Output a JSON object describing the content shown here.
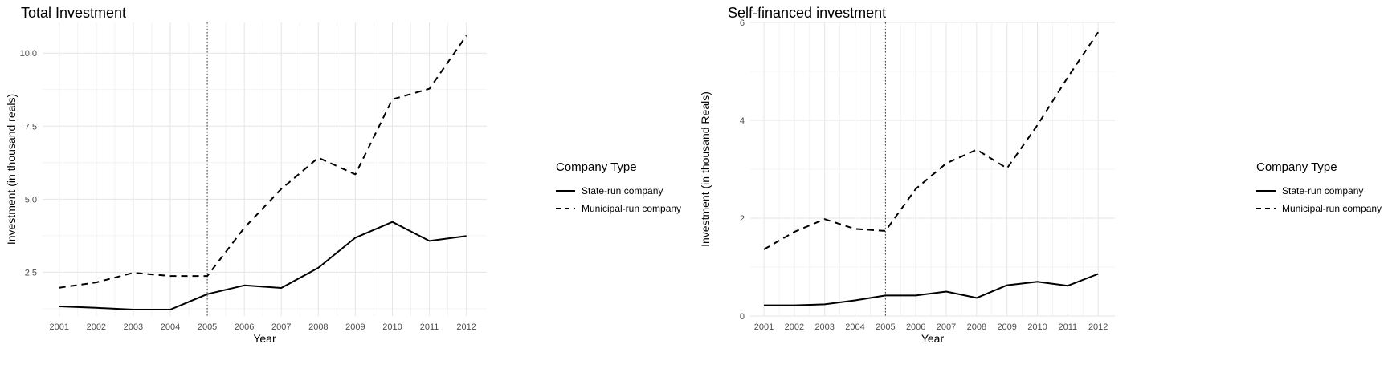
{
  "chart_data": [
    {
      "type": "line",
      "title": "Total Investment",
      "xlabel": "Year",
      "ylabel": "Investment (in thousand reals)",
      "x": [
        2001,
        2002,
        2003,
        2004,
        2005,
        2006,
        2007,
        2008,
        2009,
        2010,
        2011,
        2012
      ],
      "xlim": [
        2000.55,
        2012.55
      ],
      "ylim": [
        1.0,
        11.05
      ],
      "yticks": [
        2.5,
        5.0,
        7.5,
        10.0
      ],
      "ytick_labels": [
        "2.5",
        "5.0",
        "7.5",
        "10.0"
      ],
      "vline": 2005,
      "grid": true,
      "legend": {
        "title": "Company Type",
        "position": "right",
        "entries": [
          "State-run company",
          "Municipal-run company"
        ]
      },
      "series": [
        {
          "name": "State-run company",
          "linestyle": "solid",
          "values": [
            1.33,
            1.28,
            1.22,
            1.22,
            1.75,
            2.05,
            1.96,
            2.65,
            3.68,
            4.22,
            3.57,
            3.74
          ]
        },
        {
          "name": "Municipal-run company",
          "linestyle": "dashed",
          "values": [
            1.97,
            2.15,
            2.48,
            2.37,
            2.37,
            4.02,
            5.35,
            6.42,
            5.85,
            8.42,
            8.78,
            10.6
          ]
        }
      ]
    },
    {
      "type": "line",
      "title": "Self-financed investment",
      "xlabel": "Year",
      "ylabel": "Investment (in thousand Reals)",
      "x": [
        2001,
        2002,
        2003,
        2004,
        2005,
        2006,
        2007,
        2008,
        2009,
        2010,
        2011,
        2012
      ],
      "xlim": [
        2000.55,
        2012.55
      ],
      "ylim": [
        0,
        6.0
      ],
      "yticks": [
        0,
        2,
        4,
        6
      ],
      "ytick_labels": [
        "0",
        "2",
        "4",
        "6"
      ],
      "vline": 2005,
      "grid": true,
      "legend": {
        "title": "Company Type",
        "position": "right",
        "entries": [
          "State-run company",
          "Municipal-run company"
        ]
      },
      "series": [
        {
          "name": "State-run company",
          "linestyle": "solid",
          "values": [
            0.22,
            0.22,
            0.24,
            0.32,
            0.42,
            0.42,
            0.5,
            0.37,
            0.63,
            0.7,
            0.62,
            0.86
          ]
        },
        {
          "name": "Municipal-run company",
          "linestyle": "dashed",
          "values": [
            1.36,
            1.72,
            1.98,
            1.78,
            1.74,
            2.6,
            3.12,
            3.4,
            3.02,
            3.9,
            4.88,
            5.8
          ]
        }
      ]
    }
  ]
}
